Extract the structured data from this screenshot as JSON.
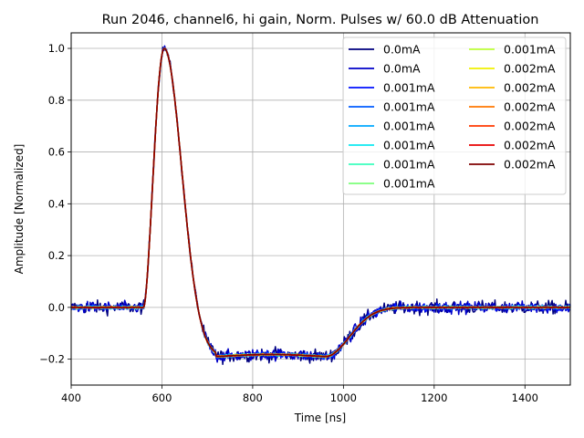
{
  "chart_data": {
    "type": "line",
    "title": "Run 2046, channel6, hi gain, Norm. Pulses w/ 60.0 dB Attenuation",
    "xlabel": "Time [ns]",
    "ylabel": "Amplitude [Normalized]",
    "xlim": [
      400,
      1500
    ],
    "ylim": [
      -0.3,
      1.06
    ],
    "xticks": [
      400,
      600,
      800,
      1000,
      1200,
      1400
    ],
    "yticks": [
      -0.2,
      0.0,
      0.2,
      0.4,
      0.6,
      0.8,
      1.0
    ],
    "xtick_labels": [
      "400",
      "600",
      "800",
      "1000",
      "1200",
      "1400"
    ],
    "ytick_labels": [
      "−0.2",
      "0.0",
      "0.2",
      "0.4",
      "0.6",
      "0.8",
      "1.0"
    ],
    "grid": true,
    "legend_position": "top-right",
    "legend_columns": 2,
    "pulse_shape": {
      "baseline_start_ns": 560,
      "peak_time_ns": 605,
      "peak_amplitude": 1.0,
      "undershoot_time_ns": 720,
      "undershoot_amplitude": -0.19,
      "recovery_start_ns": 960,
      "recovery_end_ns": 1100
    },
    "series": [
      {
        "name": "0.0mA",
        "color": "#00007f",
        "noise": 0.025
      },
      {
        "name": "0.0mA",
        "color": "#0000c8",
        "noise": 0.022
      },
      {
        "name": "0.001mA",
        "color": "#0010ff",
        "noise": 0.012
      },
      {
        "name": "0.001mA",
        "color": "#005cff",
        "noise": 0.008
      },
      {
        "name": "0.001mA",
        "color": "#00a8ff",
        "noise": 0.006
      },
      {
        "name": "0.001mA",
        "color": "#0de8f0",
        "noise": 0.005
      },
      {
        "name": "0.001mA",
        "color": "#39ffbd",
        "noise": 0.004
      },
      {
        "name": "0.001mA",
        "color": "#7cff7a",
        "noise": 0.004
      },
      {
        "name": "0.001mA",
        "color": "#bdff39",
        "noise": 0.003
      },
      {
        "name": "0.002mA",
        "color": "#f0f000",
        "noise": 0.003
      },
      {
        "name": "0.002mA",
        "color": "#ffb800",
        "noise": 0.003
      },
      {
        "name": "0.002mA",
        "color": "#ff7700",
        "noise": 0.002
      },
      {
        "name": "0.002mA",
        "color": "#ff3800",
        "noise": 0.002
      },
      {
        "name": "0.002mA",
        "color": "#e80000",
        "noise": 0.002
      },
      {
        "name": "0.002mA",
        "color": "#7f0000",
        "noise": 0.001
      }
    ]
  }
}
